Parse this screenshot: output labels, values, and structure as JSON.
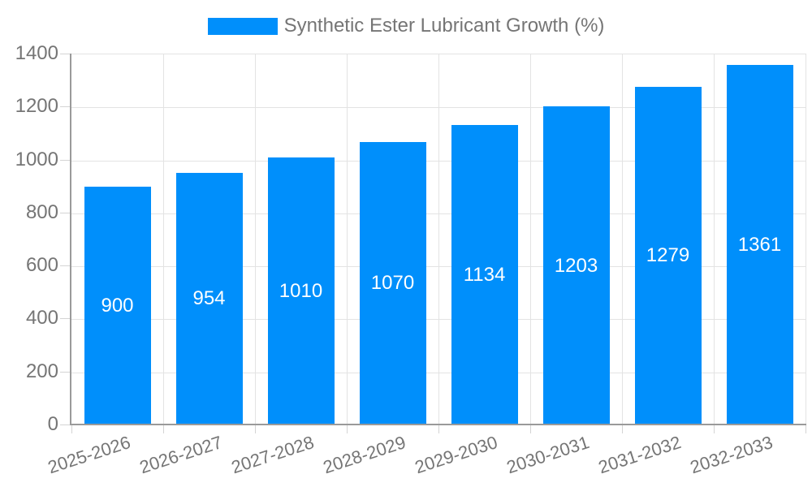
{
  "chart_data": {
    "type": "bar",
    "title": "Synthetic Ester Lubricant Growth (%)",
    "legend_label": "Synthetic Ester Lubricant Growth (%)",
    "legend_position": "top-center",
    "categories": [
      "2025-2026",
      "2026-2027",
      "2027-2028",
      "2028-2029",
      "2029-2030",
      "2030-2031",
      "2031-2032",
      "2032-2033"
    ],
    "values": [
      900,
      954,
      1010,
      1070,
      1134,
      1203,
      1279,
      1361
    ],
    "bar_value_labels": [
      "900",
      "954",
      "1010",
      "1070",
      "1134",
      "1203",
      "1279",
      "1361"
    ],
    "xlabel": "",
    "ylabel": "",
    "ylim": [
      0,
      1400
    ],
    "yticks": [
      0,
      200,
      400,
      600,
      800,
      1000,
      1200,
      1400
    ],
    "grid": true,
    "x_label_rotation_deg": -18,
    "colors": {
      "bar": "#008FFB",
      "bar_label_text": "#ffffff",
      "axis_text": "#757575",
      "axis_line": "#9a9a9a",
      "gridline": "#e3e3e3",
      "background": "#ffffff"
    }
  }
}
